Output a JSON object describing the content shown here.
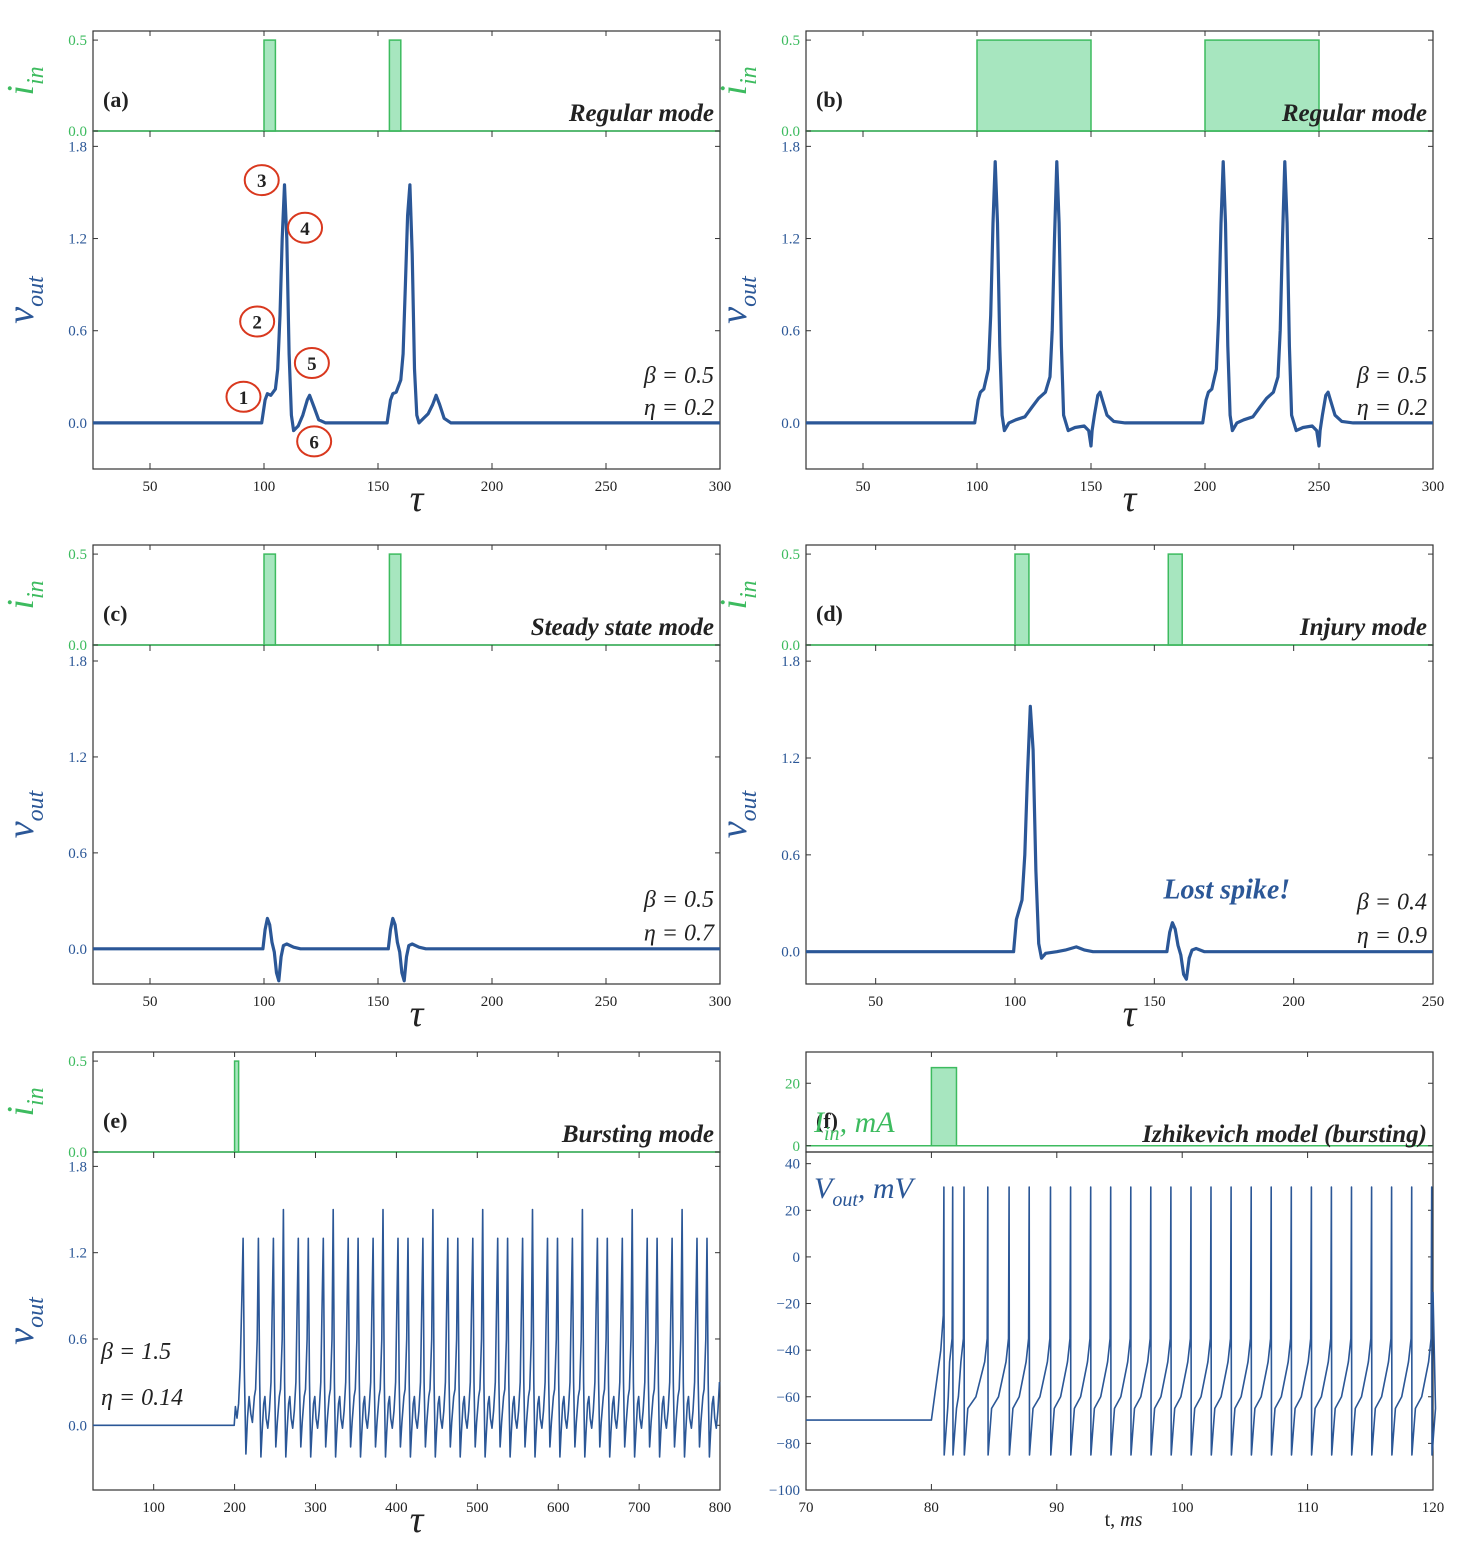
{
  "colors": {
    "input": "#3dbb5f",
    "input_fill": "#a7e6bf",
    "output": "#2b5797",
    "axis": "#333333",
    "callout": "#d9381e",
    "text": "#222222"
  },
  "labels": {
    "i_main": "i",
    "i_sub": "in",
    "v_main": "v",
    "v_sub": "out",
    "tau": "τ",
    "I_f": "I",
    "I_f_sub": "in",
    "I_f_unit": ", mA",
    "V_f": "V",
    "V_f_sub": "out",
    "V_f_unit": ", mV",
    "t_f": "t, ",
    "t_f_unit": "ms"
  },
  "chart_data": [
    {
      "id": "a",
      "type": "line",
      "panel_label": "(a)",
      "mode": "Regular mode",
      "params": [
        "β = 0.5",
        "η = 0.2"
      ],
      "x_range": [
        25,
        300
      ],
      "x_ticks": [
        50,
        100,
        150,
        200,
        250,
        300
      ],
      "input": {
        "ylim": [
          0,
          0.55
        ],
        "yticks": [
          0.0,
          0.5
        ],
        "pulses": [
          [
            100,
            105
          ],
          [
            155,
            160
          ]
        ],
        "amplitude": 0.5
      },
      "output": {
        "ylim": [
          -0.3,
          1.9
        ],
        "yticks": [
          0.0,
          0.6,
          1.2,
          1.8
        ],
        "points": [
          [
            25,
            0
          ],
          [
            99,
            0
          ],
          [
            100.5,
            0.15
          ],
          [
            101.5,
            0.19
          ],
          [
            103,
            0.18
          ],
          [
            105,
            0.22
          ],
          [
            106,
            0.35
          ],
          [
            107,
            0.7
          ],
          [
            108,
            1.2
          ],
          [
            109,
            1.55
          ],
          [
            110,
            1.2
          ],
          [
            111,
            0.45
          ],
          [
            112,
            0.05
          ],
          [
            113,
            -0.05
          ],
          [
            115,
            -0.02
          ],
          [
            117,
            0.05
          ],
          [
            119,
            0.15
          ],
          [
            120,
            0.18
          ],
          [
            122,
            0.1
          ],
          [
            124,
            0.02
          ],
          [
            127,
            0
          ],
          [
            154,
            0
          ],
          [
            155.5,
            0.15
          ],
          [
            156.5,
            0.19
          ],
          [
            158,
            0.2
          ],
          [
            160,
            0.28
          ],
          [
            161,
            0.45
          ],
          [
            162,
            0.9
          ],
          [
            163,
            1.35
          ],
          [
            164,
            1.55
          ],
          [
            165,
            1.1
          ],
          [
            166,
            0.35
          ],
          [
            167,
            0.05
          ],
          [
            168,
            0
          ],
          [
            170,
            0.03
          ],
          [
            172,
            0.06
          ],
          [
            174,
            0.12
          ],
          [
            175.5,
            0.18
          ],
          [
            177,
            0.12
          ],
          [
            179,
            0.03
          ],
          [
            182,
            0
          ],
          [
            300,
            0
          ]
        ]
      },
      "callouts": [
        {
          "n": "1",
          "x": 91,
          "y": 0.17
        },
        {
          "n": "2",
          "x": 97,
          "y": 0.66
        },
        {
          "n": "3",
          "x": 99,
          "y": 1.58
        },
        {
          "n": "4",
          "x": 118,
          "y": 1.27
        },
        {
          "n": "5",
          "x": 121,
          "y": 0.39
        },
        {
          "n": "6",
          "x": 122,
          "y": -0.12
        }
      ]
    },
    {
      "id": "b",
      "type": "line",
      "panel_label": "(b)",
      "mode": "Regular mode",
      "params": [
        "β = 0.5",
        "η = 0.2"
      ],
      "x_range": [
        25,
        300
      ],
      "x_ticks": [
        50,
        100,
        150,
        200,
        250,
        300
      ],
      "input": {
        "ylim": [
          0,
          0.55
        ],
        "yticks": [
          0.0,
          0.5
        ],
        "pulses": [
          [
            100,
            150
          ],
          [
            200,
            250
          ]
        ],
        "amplitude": 0.5
      },
      "output": {
        "ylim": [
          -0.3,
          1.9
        ],
        "yticks": [
          0.0,
          0.6,
          1.2,
          1.8
        ],
        "points": [
          [
            25,
            0
          ],
          [
            99,
            0
          ],
          [
            100.5,
            0.15
          ],
          [
            101.5,
            0.2
          ],
          [
            103,
            0.22
          ],
          [
            105,
            0.35
          ],
          [
            106,
            0.7
          ],
          [
            107,
            1.3
          ],
          [
            108,
            1.7
          ],
          [
            109,
            1.3
          ],
          [
            110,
            0.5
          ],
          [
            111,
            0.05
          ],
          [
            112,
            -0.05
          ],
          [
            114,
            0
          ],
          [
            117,
            0.02
          ],
          [
            121,
            0.04
          ],
          [
            124,
            0.1
          ],
          [
            127,
            0.16
          ],
          [
            130,
            0.2
          ],
          [
            132,
            0.3
          ],
          [
            133,
            0.6
          ],
          [
            134,
            1.2
          ],
          [
            135,
            1.7
          ],
          [
            136,
            1.3
          ],
          [
            137,
            0.5
          ],
          [
            138,
            0.05
          ],
          [
            140,
            -0.05
          ],
          [
            143,
            -0.03
          ],
          [
            147,
            -0.02
          ],
          [
            149,
            -0.05
          ],
          [
            150,
            -0.15
          ],
          [
            150.5,
            -0.05
          ],
          [
            151.5,
            0.05
          ],
          [
            153,
            0.18
          ],
          [
            154,
            0.2
          ],
          [
            155,
            0.15
          ],
          [
            157,
            0.05
          ],
          [
            160,
            0.01
          ],
          [
            165,
            0
          ],
          [
            199,
            0
          ],
          [
            200.5,
            0.15
          ],
          [
            201.5,
            0.2
          ],
          [
            203,
            0.22
          ],
          [
            205,
            0.35
          ],
          [
            206,
            0.7
          ],
          [
            207,
            1.3
          ],
          [
            208,
            1.7
          ],
          [
            209,
            1.3
          ],
          [
            210,
            0.5
          ],
          [
            211,
            0.05
          ],
          [
            212,
            -0.05
          ],
          [
            214,
            0
          ],
          [
            217,
            0.02
          ],
          [
            221,
            0.04
          ],
          [
            224,
            0.1
          ],
          [
            227,
            0.16
          ],
          [
            230,
            0.2
          ],
          [
            232,
            0.3
          ],
          [
            233,
            0.6
          ],
          [
            234,
            1.2
          ],
          [
            235,
            1.7
          ],
          [
            236,
            1.3
          ],
          [
            237,
            0.5
          ],
          [
            238,
            0.05
          ],
          [
            240,
            -0.05
          ],
          [
            243,
            -0.03
          ],
          [
            247,
            -0.02
          ],
          [
            249,
            -0.05
          ],
          [
            250,
            -0.15
          ],
          [
            250.5,
            -0.05
          ],
          [
            251.5,
            0.05
          ],
          [
            253,
            0.18
          ],
          [
            254,
            0.2
          ],
          [
            255,
            0.15
          ],
          [
            257,
            0.05
          ],
          [
            260,
            0.01
          ],
          [
            265,
            0
          ],
          [
            300,
            0
          ]
        ]
      }
    },
    {
      "id": "c",
      "type": "line",
      "panel_label": "(c)",
      "mode": "Steady state mode",
      "params": [
        "β = 0.5",
        "η = 0.7"
      ],
      "x_range": [
        25,
        300
      ],
      "x_ticks": [
        50,
        100,
        150,
        200,
        250,
        300
      ],
      "input": {
        "ylim": [
          0,
          0.55
        ],
        "yticks": [
          0.0,
          0.5
        ],
        "pulses": [
          [
            100,
            105
          ],
          [
            155,
            160
          ]
        ],
        "amplitude": 0.5
      },
      "output": {
        "ylim": [
          -0.22,
          1.9
        ],
        "yticks": [
          0.0,
          0.6,
          1.2,
          1.8
        ],
        "points": [
          [
            25,
            0
          ],
          [
            99.5,
            0
          ],
          [
            100.5,
            0.12
          ],
          [
            101.5,
            0.19
          ],
          [
            102.5,
            0.15
          ],
          [
            103.5,
            0.04
          ],
          [
            104.5,
            -0.02
          ],
          [
            105.5,
            -0.15
          ],
          [
            106.5,
            -0.2
          ],
          [
            107.5,
            -0.05
          ],
          [
            108.5,
            0.02
          ],
          [
            110,
            0.03
          ],
          [
            113,
            0.01
          ],
          [
            116,
            0
          ],
          [
            154.5,
            0
          ],
          [
            155.5,
            0.12
          ],
          [
            156.5,
            0.19
          ],
          [
            157.5,
            0.15
          ],
          [
            158.5,
            0.04
          ],
          [
            159.5,
            -0.02
          ],
          [
            160.5,
            -0.15
          ],
          [
            161.5,
            -0.2
          ],
          [
            162.5,
            -0.05
          ],
          [
            163.5,
            0.02
          ],
          [
            165,
            0.03
          ],
          [
            168,
            0.01
          ],
          [
            171,
            0
          ],
          [
            300,
            0
          ]
        ]
      }
    },
    {
      "id": "d",
      "type": "line",
      "panel_label": "(d)",
      "mode": "Injury mode",
      "params": [
        "β = 0.4",
        "η = 0.9"
      ],
      "annotation": "Lost spike!",
      "x_range": [
        25,
        250
      ],
      "x_ticks": [
        50,
        100,
        150,
        200,
        250
      ],
      "input": {
        "ylim": [
          0,
          0.55
        ],
        "yticks": [
          0.0,
          0.5
        ],
        "pulses": [
          [
            100,
            105
          ],
          [
            155,
            160
          ]
        ],
        "amplitude": 0.5
      },
      "output": {
        "ylim": [
          -0.2,
          1.9
        ],
        "yticks": [
          0.0,
          0.6,
          1.2,
          1.8
        ],
        "points": [
          [
            25,
            0
          ],
          [
            99.5,
            0
          ],
          [
            100.5,
            0.2
          ],
          [
            101.5,
            0.26
          ],
          [
            102.5,
            0.32
          ],
          [
            103.5,
            0.6
          ],
          [
            104.5,
            1.1
          ],
          [
            105.5,
            1.52
          ],
          [
            106.5,
            1.25
          ],
          [
            107.5,
            0.5
          ],
          [
            108.5,
            0.05
          ],
          [
            109.5,
            -0.04
          ],
          [
            111,
            -0.01
          ],
          [
            115,
            0
          ],
          [
            118,
            0.01
          ],
          [
            122,
            0.03
          ],
          [
            125,
            0.01
          ],
          [
            128,
            0
          ],
          [
            154.5,
            0
          ],
          [
            155.5,
            0.12
          ],
          [
            156.5,
            0.18
          ],
          [
            157.5,
            0.14
          ],
          [
            158.5,
            0.04
          ],
          [
            159.5,
            -0.02
          ],
          [
            160.5,
            -0.14
          ],
          [
            161.5,
            -0.17
          ],
          [
            162.5,
            -0.04
          ],
          [
            163.5,
            0.01
          ],
          [
            165,
            0.02
          ],
          [
            168,
            0
          ],
          [
            250,
            0
          ]
        ]
      }
    },
    {
      "id": "e",
      "type": "line",
      "panel_label": "(e)",
      "mode": "Bursting mode",
      "params": [
        "β = 1.5",
        "η = 0.14"
      ],
      "x_range": [
        25,
        800
      ],
      "x_ticks": [
        100,
        200,
        300,
        400,
        500,
        600,
        700,
        800
      ],
      "input": {
        "ylim": [
          0,
          0.55
        ],
        "yticks": [
          0.0,
          0.5
        ],
        "pulses": [
          [
            200,
            205
          ]
        ],
        "amplitude": 0.5
      },
      "output": {
        "ylim": [
          -0.45,
          1.9
        ],
        "yticks": [
          0.0,
          0.6,
          1.2,
          1.8
        ],
        "start": 200,
        "period": 30.8,
        "burst_peaks": [
          1.3,
          1.5,
          1.3
        ]
      }
    },
    {
      "id": "f",
      "type": "line",
      "panel_label": "(f)",
      "mode": "Izhikevich model (bursting)",
      "x_range": [
        70,
        120
      ],
      "x_ticks": [
        70,
        80,
        90,
        100,
        110,
        120
      ],
      "input": {
        "ylim": [
          -2,
          30
        ],
        "yticks": [
          0,
          20
        ],
        "pulses": [
          [
            80,
            82
          ]
        ],
        "amplitude": 25
      },
      "output": {
        "ylim": [
          -100,
          45
        ],
        "yticks": [
          -100,
          -80,
          -60,
          -40,
          -20,
          0,
          20,
          40
        ],
        "rest": -70,
        "start": 80,
        "spikes": [
          81,
          81.7,
          82.6,
          84.5,
          86.2,
          87.8,
          89.5,
          91.1,
          92.7,
          94.3,
          95.9,
          97.5,
          99.1,
          100.7,
          102.3,
          103.9,
          105.5,
          107.1,
          108.7,
          110.3,
          111.9,
          113.5,
          115.1,
          116.7,
          118.3,
          119.9
        ],
        "peak": 30,
        "reset": -85
      }
    }
  ]
}
